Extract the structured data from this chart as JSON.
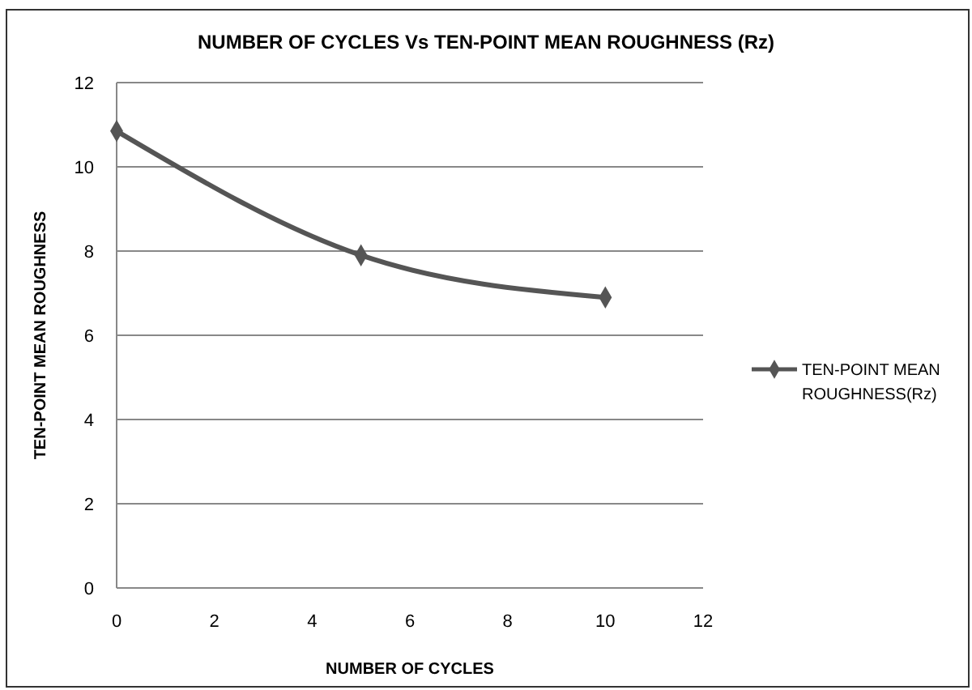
{
  "chart_data": {
    "type": "line",
    "title": "NUMBER OF CYCLES Vs TEN-POINT MEAN ROUGHNESS (Rz)",
    "xlabel": "NUMBER OF CYCLES",
    "ylabel": "TEN-POINT MEAN ROUGHNESS",
    "x": [
      0,
      5,
      10
    ],
    "series": [
      {
        "name": "TEN-POINT MEAN ROUGHNESS(Rz)",
        "color": "#555555",
        "values": [
          10.85,
          7.9,
          6.9
        ]
      }
    ],
    "xlim": [
      0,
      12
    ],
    "xticks": [
      0,
      2,
      4,
      6,
      8,
      10,
      12
    ],
    "ylim": [
      0,
      12
    ],
    "yticks": [
      0,
      2,
      4,
      6,
      8,
      10,
      12
    ],
    "grid": "y",
    "legend": "right",
    "marker": "diamond",
    "line_style": "solid"
  }
}
